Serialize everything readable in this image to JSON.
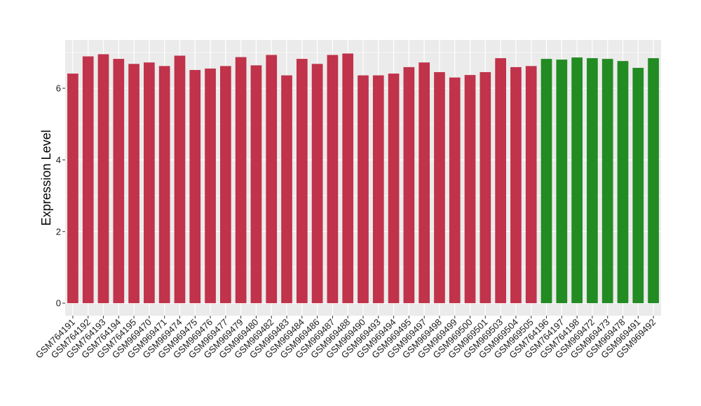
{
  "chart_data": {
    "type": "bar",
    "xlabel": "",
    "ylabel": "Expression Level",
    "ylim": [
      -0.35,
      7.35
    ],
    "yticks": [
      0,
      2,
      4,
      6
    ],
    "grid": true,
    "legend": "none",
    "panel_background": "#ebebeb",
    "grid_color": "#ffffff",
    "categories": [
      "GSM764191",
      "GSM764192",
      "GSM764193",
      "GSM764194",
      "GSM764195",
      "GSM969470",
      "GSM969471",
      "GSM969474",
      "GSM969475",
      "GSM969476",
      "GSM969477",
      "GSM969479",
      "GSM969480",
      "GSM969482",
      "GSM969483",
      "GSM969484",
      "GSM969486",
      "GSM969487",
      "GSM969488",
      "GSM969490",
      "GSM969493",
      "GSM969494",
      "GSM969495",
      "GSM969497",
      "GSM969498",
      "GSM969499",
      "GSM969500",
      "GSM969501",
      "GSM969503",
      "GSM969504",
      "GSM969505",
      "GSM764196",
      "GSM764197",
      "GSM764198",
      "GSM969472",
      "GSM969473",
      "GSM969478",
      "GSM969491",
      "GSM969492"
    ],
    "values": [
      6.41,
      6.89,
      6.95,
      6.82,
      6.68,
      6.72,
      6.62,
      6.91,
      6.51,
      6.55,
      6.62,
      6.87,
      6.64,
      6.93,
      6.36,
      6.82,
      6.68,
      6.93,
      6.97,
      6.36,
      6.36,
      6.41,
      6.59,
      6.72,
      6.45,
      6.3,
      6.37,
      6.45,
      6.84,
      6.59,
      6.62,
      6.82,
      6.8,
      6.86,
      6.84,
      6.82,
      6.76,
      6.57,
      6.84
    ],
    "bar_colors": [
      "#c0334a",
      "#c0334a",
      "#c0334a",
      "#c0334a",
      "#c0334a",
      "#c0334a",
      "#c0334a",
      "#c0334a",
      "#c0334a",
      "#c0334a",
      "#c0334a",
      "#c0334a",
      "#c0334a",
      "#c0334a",
      "#c0334a",
      "#c0334a",
      "#c0334a",
      "#c0334a",
      "#c0334a",
      "#c0334a",
      "#c0334a",
      "#c0334a",
      "#c0334a",
      "#c0334a",
      "#c0334a",
      "#c0334a",
      "#c0334a",
      "#c0334a",
      "#c0334a",
      "#c0334a",
      "#c0334a",
      "#228b22",
      "#228b22",
      "#228b22",
      "#228b22",
      "#228b22",
      "#228b22",
      "#228b22",
      "#228b22"
    ]
  }
}
